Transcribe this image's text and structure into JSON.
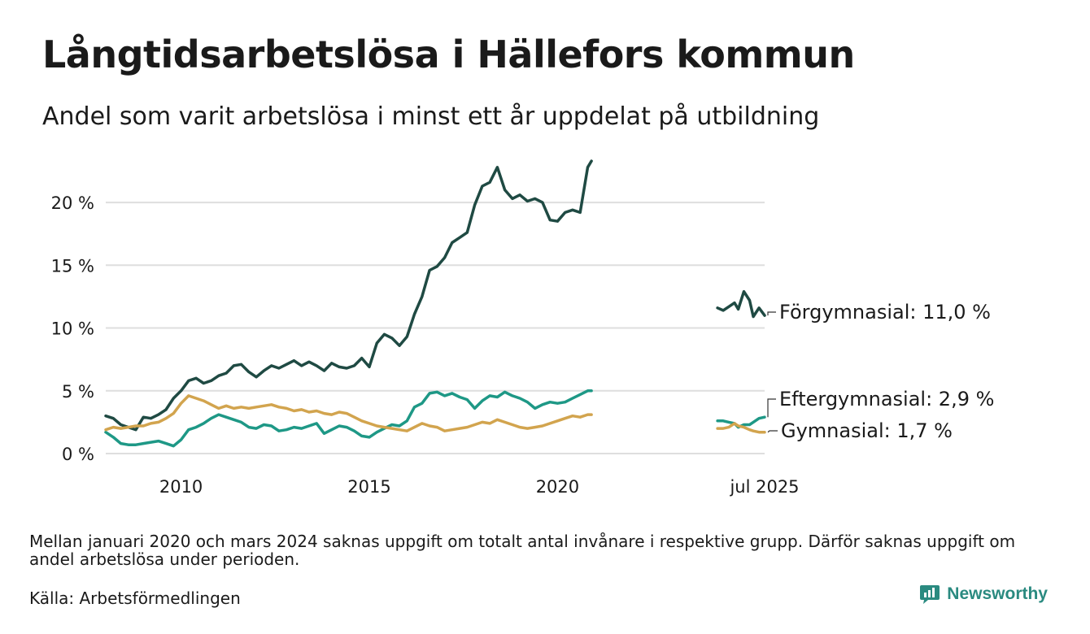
{
  "header": {
    "title": "Långtidsarbetslösa i Hällefors kommun",
    "subtitle": "Andel som varit arbetslösa i minst ett år uppdelat på utbildning"
  },
  "footer": {
    "note": "Mellan januari 2020 och mars 2024 saknas uppgift om totalt antal invånare i respektive grupp. Därför saknas uppgift om andel arbetslösa under perioden.",
    "source": "Källa: Arbetsförmedlingen",
    "brand": "Newsworthy",
    "brand_icon": "newsworthy-logo-icon"
  },
  "colors": {
    "forgymnasial": "#1f4a43",
    "eftergymnasial": "#1e9886",
    "gymnasial": "#d2a44e",
    "grid": "#dedede",
    "brand": "#2a8a80"
  },
  "chart_data": {
    "type": "line",
    "title": "Långtidsarbetslösa i Hällefors kommun",
    "subtitle": "Andel som varit arbetslösa i minst ett år uppdelat på utbildning",
    "xlabel": "",
    "ylabel": "",
    "x_ticks": [
      {
        "x": 2010.0,
        "label": "2010"
      },
      {
        "x": 2015.0,
        "label": "2015"
      },
      {
        "x": 2020.0,
        "label": "2020"
      },
      {
        "x": 2025.5,
        "label": "jul 2025"
      }
    ],
    "y_ticks": [
      {
        "y": 0,
        "label": "0 %"
      },
      {
        "y": 5,
        "label": "5 %"
      },
      {
        "y": 10,
        "label": "10 %"
      },
      {
        "y": 15,
        "label": "15 %"
      },
      {
        "y": 20,
        "label": "20 %"
      }
    ],
    "xlim": [
      2008.0,
      2025.5
    ],
    "ylim": [
      0,
      23.5
    ],
    "grid": true,
    "legend": "end-labels-right",
    "series": [
      {
        "key": "forgymnasial",
        "label": "Förgymnasial:",
        "value_label": "11,0 %",
        "segments": [
          [
            [
              2008.0,
              3.0
            ],
            [
              2008.2,
              2.8
            ],
            [
              2008.4,
              2.3
            ],
            [
              2008.6,
              2.1
            ],
            [
              2008.8,
              1.9
            ],
            [
              2009.0,
              2.9
            ],
            [
              2009.2,
              2.8
            ],
            [
              2009.4,
              3.1
            ],
            [
              2009.6,
              3.5
            ],
            [
              2009.8,
              4.4
            ],
            [
              2010.0,
              5.0
            ],
            [
              2010.2,
              5.8
            ],
            [
              2010.4,
              6.0
            ],
            [
              2010.6,
              5.6
            ],
            [
              2010.8,
              5.8
            ],
            [
              2011.0,
              6.2
            ],
            [
              2011.2,
              6.4
            ],
            [
              2011.4,
              7.0
            ],
            [
              2011.6,
              7.1
            ],
            [
              2011.8,
              6.5
            ],
            [
              2012.0,
              6.1
            ],
            [
              2012.2,
              6.6
            ],
            [
              2012.4,
              7.0
            ],
            [
              2012.6,
              6.8
            ],
            [
              2012.8,
              7.1
            ],
            [
              2013.0,
              7.4
            ],
            [
              2013.2,
              7.0
            ],
            [
              2013.4,
              7.3
            ],
            [
              2013.6,
              7.0
            ],
            [
              2013.8,
              6.6
            ],
            [
              2014.0,
              7.2
            ],
            [
              2014.2,
              6.9
            ],
            [
              2014.4,
              6.8
            ],
            [
              2014.6,
              7.0
            ],
            [
              2014.8,
              7.6
            ],
            [
              2015.0,
              6.9
            ],
            [
              2015.2,
              8.8
            ],
            [
              2015.4,
              9.5
            ],
            [
              2015.6,
              9.2
            ],
            [
              2015.8,
              8.6
            ],
            [
              2016.0,
              9.3
            ],
            [
              2016.2,
              11.1
            ],
            [
              2016.4,
              12.5
            ],
            [
              2016.6,
              14.6
            ],
            [
              2016.8,
              14.9
            ],
            [
              2017.0,
              15.6
            ],
            [
              2017.2,
              16.8
            ],
            [
              2017.4,
              17.2
            ],
            [
              2017.6,
              17.6
            ],
            [
              2017.8,
              19.8
            ],
            [
              2018.0,
              21.3
            ],
            [
              2018.2,
              21.6
            ],
            [
              2018.4,
              22.8
            ],
            [
              2018.6,
              21.0
            ],
            [
              2018.8,
              20.3
            ],
            [
              2019.0,
              20.6
            ],
            [
              2019.2,
              20.1
            ],
            [
              2019.4,
              20.3
            ],
            [
              2019.6,
              20.0
            ],
            [
              2019.8,
              18.6
            ],
            [
              2020.0,
              18.5
            ],
            [
              2020.2,
              19.2
            ],
            [
              2020.4,
              19.4
            ],
            [
              2020.6,
              19.2
            ],
            [
              2020.8,
              22.8
            ],
            [
              2020.9,
              23.3
            ]
          ],
          [
            [
              2024.25,
              11.6
            ],
            [
              2024.4,
              11.4
            ],
            [
              2024.55,
              11.7
            ],
            [
              2024.7,
              12.0
            ],
            [
              2024.8,
              11.5
            ],
            [
              2024.95,
              12.9
            ],
            [
              2025.1,
              12.2
            ],
            [
              2025.2,
              10.9
            ],
            [
              2025.35,
              11.6
            ],
            [
              2025.5,
              11.0
            ]
          ]
        ]
      },
      {
        "key": "eftergymnasial",
        "label": "Eftergymnasial:",
        "value_label": "2,9 %",
        "segments": [
          [
            [
              2008.0,
              1.7
            ],
            [
              2008.2,
              1.3
            ],
            [
              2008.4,
              0.8
            ],
            [
              2008.6,
              0.7
            ],
            [
              2008.8,
              0.7
            ],
            [
              2009.0,
              0.8
            ],
            [
              2009.2,
              0.9
            ],
            [
              2009.4,
              1.0
            ],
            [
              2009.6,
              0.8
            ],
            [
              2009.8,
              0.6
            ],
            [
              2010.0,
              1.1
            ],
            [
              2010.2,
              1.9
            ],
            [
              2010.4,
              2.1
            ],
            [
              2010.6,
              2.4
            ],
            [
              2010.8,
              2.8
            ],
            [
              2011.0,
              3.1
            ],
            [
              2011.2,
              2.9
            ],
            [
              2011.4,
              2.7
            ],
            [
              2011.6,
              2.5
            ],
            [
              2011.8,
              2.1
            ],
            [
              2012.0,
              2.0
            ],
            [
              2012.2,
              2.3
            ],
            [
              2012.4,
              2.2
            ],
            [
              2012.6,
              1.8
            ],
            [
              2012.8,
              1.9
            ],
            [
              2013.0,
              2.1
            ],
            [
              2013.2,
              2.0
            ],
            [
              2013.4,
              2.2
            ],
            [
              2013.6,
              2.4
            ],
            [
              2013.8,
              1.6
            ],
            [
              2014.0,
              1.9
            ],
            [
              2014.2,
              2.2
            ],
            [
              2014.4,
              2.1
            ],
            [
              2014.6,
              1.8
            ],
            [
              2014.8,
              1.4
            ],
            [
              2015.0,
              1.3
            ],
            [
              2015.2,
              1.7
            ],
            [
              2015.4,
              2.0
            ],
            [
              2015.6,
              2.3
            ],
            [
              2015.8,
              2.2
            ],
            [
              2016.0,
              2.6
            ],
            [
              2016.2,
              3.7
            ],
            [
              2016.4,
              4.0
            ],
            [
              2016.6,
              4.8
            ],
            [
              2016.8,
              4.9
            ],
            [
              2017.0,
              4.6
            ],
            [
              2017.2,
              4.8
            ],
            [
              2017.4,
              4.5
            ],
            [
              2017.6,
              4.3
            ],
            [
              2017.8,
              3.6
            ],
            [
              2018.0,
              4.2
            ],
            [
              2018.2,
              4.6
            ],
            [
              2018.4,
              4.5
            ],
            [
              2018.6,
              4.9
            ],
            [
              2018.8,
              4.6
            ],
            [
              2019.0,
              4.4
            ],
            [
              2019.2,
              4.1
            ],
            [
              2019.4,
              3.6
            ],
            [
              2019.6,
              3.9
            ],
            [
              2019.8,
              4.1
            ],
            [
              2020.0,
              4.0
            ],
            [
              2020.2,
              4.1
            ],
            [
              2020.4,
              4.4
            ],
            [
              2020.6,
              4.7
            ],
            [
              2020.8,
              5.0
            ],
            [
              2020.9,
              5.0
            ]
          ],
          [
            [
              2024.25,
              2.6
            ],
            [
              2024.4,
              2.6
            ],
            [
              2024.55,
              2.5
            ],
            [
              2024.7,
              2.4
            ],
            [
              2024.8,
              2.1
            ],
            [
              2024.95,
              2.3
            ],
            [
              2025.1,
              2.3
            ],
            [
              2025.2,
              2.5
            ],
            [
              2025.35,
              2.8
            ],
            [
              2025.5,
              2.9
            ]
          ]
        ]
      },
      {
        "key": "gymnasial",
        "label": "Gymnasial:",
        "value_label": "1,7 %",
        "segments": [
          [
            [
              2008.0,
              1.9
            ],
            [
              2008.2,
              2.1
            ],
            [
              2008.4,
              2.0
            ],
            [
              2008.6,
              2.1
            ],
            [
              2008.8,
              2.2
            ],
            [
              2009.0,
              2.2
            ],
            [
              2009.2,
              2.4
            ],
            [
              2009.4,
              2.5
            ],
            [
              2009.6,
              2.8
            ],
            [
              2009.8,
              3.2
            ],
            [
              2010.0,
              4.0
            ],
            [
              2010.2,
              4.6
            ],
            [
              2010.4,
              4.4
            ],
            [
              2010.6,
              4.2
            ],
            [
              2010.8,
              3.9
            ],
            [
              2011.0,
              3.6
            ],
            [
              2011.2,
              3.8
            ],
            [
              2011.4,
              3.6
            ],
            [
              2011.6,
              3.7
            ],
            [
              2011.8,
              3.6
            ],
            [
              2012.0,
              3.7
            ],
            [
              2012.2,
              3.8
            ],
            [
              2012.4,
              3.9
            ],
            [
              2012.6,
              3.7
            ],
            [
              2012.8,
              3.6
            ],
            [
              2013.0,
              3.4
            ],
            [
              2013.2,
              3.5
            ],
            [
              2013.4,
              3.3
            ],
            [
              2013.6,
              3.4
            ],
            [
              2013.8,
              3.2
            ],
            [
              2014.0,
              3.1
            ],
            [
              2014.2,
              3.3
            ],
            [
              2014.4,
              3.2
            ],
            [
              2014.6,
              2.9
            ],
            [
              2014.8,
              2.6
            ],
            [
              2015.0,
              2.4
            ],
            [
              2015.2,
              2.2
            ],
            [
              2015.4,
              2.1
            ],
            [
              2015.6,
              2.0
            ],
            [
              2015.8,
              1.9
            ],
            [
              2016.0,
              1.8
            ],
            [
              2016.2,
              2.1
            ],
            [
              2016.4,
              2.4
            ],
            [
              2016.6,
              2.2
            ],
            [
              2016.8,
              2.1
            ],
            [
              2017.0,
              1.8
            ],
            [
              2017.2,
              1.9
            ],
            [
              2017.4,
              2.0
            ],
            [
              2017.6,
              2.1
            ],
            [
              2017.8,
              2.3
            ],
            [
              2018.0,
              2.5
            ],
            [
              2018.2,
              2.4
            ],
            [
              2018.4,
              2.7
            ],
            [
              2018.6,
              2.5
            ],
            [
              2018.8,
              2.3
            ],
            [
              2019.0,
              2.1
            ],
            [
              2019.2,
              2.0
            ],
            [
              2019.4,
              2.1
            ],
            [
              2019.6,
              2.2
            ],
            [
              2019.8,
              2.4
            ],
            [
              2020.0,
              2.6
            ],
            [
              2020.2,
              2.8
            ],
            [
              2020.4,
              3.0
            ],
            [
              2020.6,
              2.9
            ],
            [
              2020.8,
              3.1
            ],
            [
              2020.9,
              3.1
            ]
          ],
          [
            [
              2024.25,
              2.0
            ],
            [
              2024.4,
              2.0
            ],
            [
              2024.55,
              2.1
            ],
            [
              2024.7,
              2.4
            ],
            [
              2024.8,
              2.2
            ],
            [
              2024.95,
              2.1
            ],
            [
              2025.1,
              1.9
            ],
            [
              2025.2,
              1.8
            ],
            [
              2025.35,
              1.7
            ],
            [
              2025.5,
              1.7
            ]
          ]
        ]
      }
    ]
  }
}
